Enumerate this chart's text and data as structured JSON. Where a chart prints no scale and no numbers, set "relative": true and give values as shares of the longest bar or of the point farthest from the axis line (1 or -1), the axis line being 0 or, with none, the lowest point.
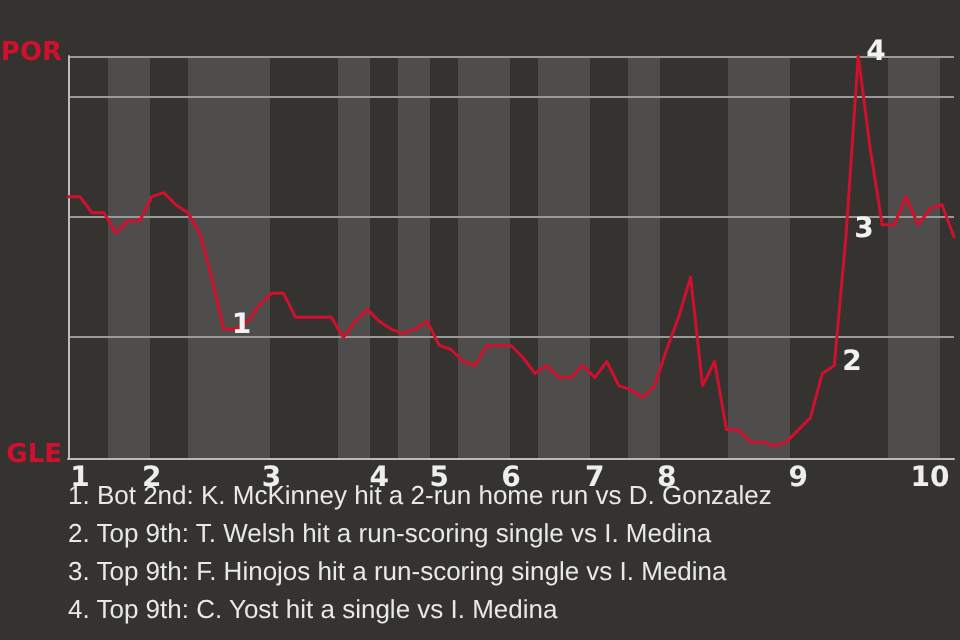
{
  "chart_data": {
    "type": "line",
    "relative": true,
    "categories": [
      null,
      "1",
      null,
      null,
      null,
      null,
      null,
      "2",
      null,
      null,
      null,
      null,
      null,
      null,
      null,
      null,
      null,
      "3",
      null,
      null,
      null,
      null,
      null,
      null,
      null,
      null,
      "4",
      null,
      null,
      null,
      null,
      "5",
      null,
      null,
      null,
      null,
      null,
      "6",
      null,
      null,
      null,
      null,
      null,
      null,
      "7",
      null,
      null,
      null,
      null,
      null,
      "8",
      null,
      null,
      null,
      null,
      null,
      null,
      null,
      null,
      null,
      null,
      "9",
      null,
      null,
      null,
      null,
      null,
      null,
      null,
      null,
      null,
      null,
      "10",
      null,
      null
    ],
    "series": [
      {
        "color": "#d0102c",
        "values": [
          0.65,
          0.65,
          0.61,
          0.61,
          0.56,
          0.59,
          0.59,
          0.65,
          0.66,
          0.63,
          0.61,
          0.56,
          0.45,
          0.32,
          0.32,
          0.34,
          0.38,
          0.41,
          0.41,
          0.35,
          0.35,
          0.35,
          0.35,
          0.3,
          0.34,
          0.37,
          0.34,
          0.32,
          0.31,
          0.32,
          0.34,
          0.28,
          0.27,
          0.24,
          0.23,
          0.28,
          0.28,
          0.28,
          0.25,
          0.21,
          0.23,
          0.2,
          0.2,
          0.23,
          0.2,
          0.24,
          0.18,
          0.17,
          0.15,
          0.18,
          0.27,
          0.35,
          0.45,
          0.18,
          0.24,
          0.07,
          0.07,
          0.04,
          0.04,
          0.03,
          0.04,
          0.07,
          0.1,
          0.21,
          0.23,
          0.56,
          1,
          0.77,
          0.58,
          0.58,
          0.65,
          0.58,
          0.62,
          0.63,
          0.55
        ]
      }
    ],
    "grid": "y",
    "marker": "none",
    "line_style": "solid",
    "annotations": [
      "POR",
      "GLE",
      "1",
      "2",
      "3",
      "4",
      "1. Bot 2nd: K. McKinney hit a 2-run home run vs D. Gonzalez",
      "2. Top 9th: T. Welsh hit a run-scoring single vs I. Medina",
      "3. Top 9th: F. Hinojos hit a run-scoring single vs I. Medina",
      "4. Top 9th: C. Yost hit a single vs I. Medina"
    ]
  }
}
